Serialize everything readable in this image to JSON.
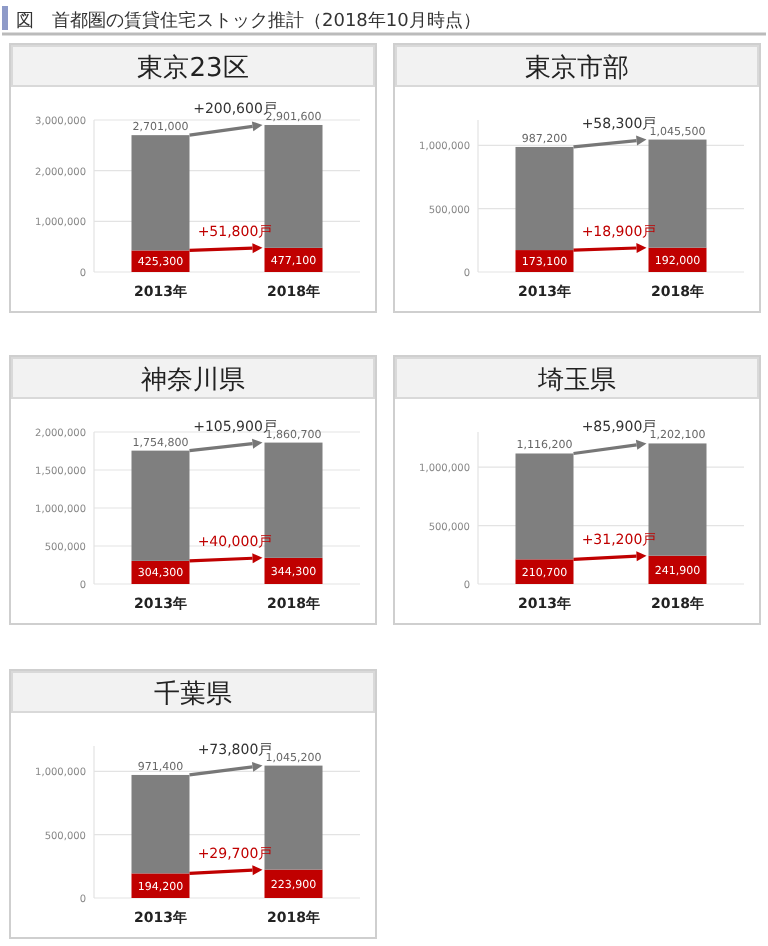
{
  "chart_data": [
    {
      "type": "bar",
      "stacked": true,
      "title": "東京23区",
      "categories": [
        "2013年",
        "2018年"
      ],
      "grid": "y",
      "series": [
        {
          "color": "#c00000",
          "values": [
            425300,
            477100
          ],
          "value_labels": [
            "425,300",
            "477,100"
          ]
        },
        {
          "color": "#7f7f7f",
          "values": [
            2275700,
            2424500
          ]
        }
      ],
      "totals": [
        "2,701,000",
        "2,901,600"
      ],
      "ylim": [
        0,
        3000000
      ],
      "yticks": [
        {
          "value": 0,
          "label": "0"
        },
        {
          "value": 1000000,
          "label": "1,000,000"
        },
        {
          "value": 2000000,
          "label": "2,000,000"
        },
        {
          "value": 3000000,
          "label": "3,000,000"
        }
      ],
      "annotations": [
        "図　首都圏の賃貸住宅ストック推計（2018年10月時点）",
        {
          "text": "+200,600戸",
          "x": "2018年",
          "y": 2901600
        },
        {
          "text": "+51,800戸",
          "x": "2018年",
          "y": 477100
        }
      ]
    },
    {
      "type": "bar",
      "stacked": true,
      "title": "東京市部",
      "categories": [
        "2013年",
        "2018年"
      ],
      "grid": "y",
      "series": [
        {
          "color": "#c00000",
          "values": [
            173100,
            192000
          ],
          "value_labels": [
            "173,100",
            "192,000"
          ]
        },
        {
          "color": "#7f7f7f",
          "values": [
            814100,
            853500
          ]
        }
      ],
      "totals": [
        "987,200",
        "1,045,500"
      ],
      "ylim": [
        0,
        1200000
      ],
      "yticks": [
        {
          "value": 0,
          "label": "0"
        },
        {
          "value": 500000,
          "label": "500,000"
        },
        {
          "value": 1000000,
          "label": "1,000,000"
        }
      ],
      "annotations": [
        {
          "text": "+58,300戸",
          "x": "2018年",
          "y": 1045500
        },
        {
          "text": "+18,900戸",
          "x": "2018年",
          "y": 192000
        }
      ]
    },
    {
      "type": "bar",
      "stacked": true,
      "title": "神奈川県",
      "categories": [
        "2013年",
        "2018年"
      ],
      "grid": "y",
      "series": [
        {
          "color": "#c00000",
          "values": [
            304300,
            344300
          ],
          "value_labels": [
            "304,300",
            "344,300"
          ]
        },
        {
          "color": "#7f7f7f",
          "values": [
            1450500,
            1516400
          ]
        }
      ],
      "totals": [
        "1,754,800",
        "1,860,700"
      ],
      "ylim": [
        0,
        2000000
      ],
      "yticks": [
        {
          "value": 0,
          "label": "0"
        },
        {
          "value": 500000,
          "label": "500,000"
        },
        {
          "value": 1000000,
          "label": "1,000,000"
        },
        {
          "value": 1500000,
          "label": "1,500,000"
        },
        {
          "value": 2000000,
          "label": "2,000,000"
        }
      ],
      "annotations": [
        {
          "text": "+105,900戸",
          "x": "2018年",
          "y": 1860700
        },
        {
          "text": "+40,000戸",
          "x": "2018年",
          "y": 344300
        }
      ]
    },
    {
      "type": "bar",
      "stacked": true,
      "title": "埼玉県",
      "categories": [
        "2013年",
        "2018年"
      ],
      "grid": "y",
      "series": [
        {
          "color": "#c00000",
          "values": [
            210700,
            241900
          ],
          "value_labels": [
            "210,700",
            "241,900"
          ]
        },
        {
          "color": "#7f7f7f",
          "values": [
            905500,
            960200
          ]
        }
      ],
      "totals": [
        "1,116,200",
        "1,202,100"
      ],
      "ylim": [
        0,
        1300000
      ],
      "yticks": [
        {
          "value": 0,
          "label": "0"
        },
        {
          "value": 500000,
          "label": "500,000"
        },
        {
          "value": 1000000,
          "label": "1,000,000"
        }
      ],
      "annotations": [
        {
          "text": "+85,900戸",
          "x": "2018年",
          "y": 1202100
        },
        {
          "text": "+31,200戸",
          "x": "2018年",
          "y": 241900
        }
      ]
    },
    {
      "type": "bar",
      "stacked": true,
      "title": "千葉県",
      "categories": [
        "2013年",
        "2018年"
      ],
      "grid": "y",
      "series": [
        {
          "color": "#c00000",
          "values": [
            194200,
            223900
          ],
          "value_labels": [
            "194,200",
            "223,900"
          ]
        },
        {
          "color": "#7f7f7f",
          "values": [
            777200,
            821300
          ]
        }
      ],
      "totals": [
        "971,400",
        "1,045,200"
      ],
      "ylim": [
        0,
        1200000
      ],
      "yticks": [
        {
          "value": 0,
          "label": "0"
        },
        {
          "value": 500000,
          "label": "500,000"
        },
        {
          "value": 1000000,
          "label": "1,000,000"
        }
      ],
      "annotations": [
        {
          "text": "+73,800戸",
          "x": "2018年",
          "y": 1045200
        },
        {
          "text": "+29,700戸",
          "x": "2018年",
          "y": 223900
        }
      ]
    }
  ]
}
